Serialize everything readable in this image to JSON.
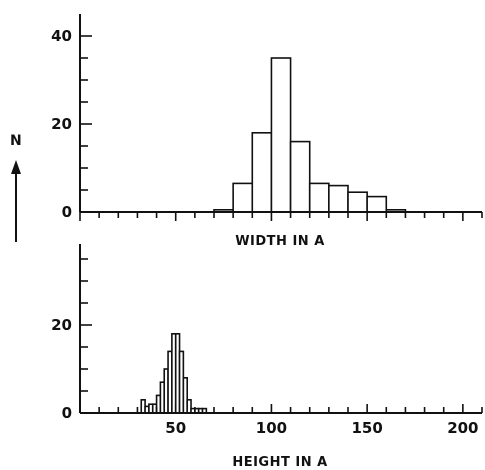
{
  "chart_data": [
    {
      "type": "bar",
      "xlabel": "WIDTH IN A",
      "ylabel": "N",
      "xlim": [
        0,
        210
      ],
      "ylim": [
        0,
        45
      ],
      "y_ticks": [
        0,
        20,
        40
      ],
      "y_minor_step": 5,
      "x_minor_step": 10,
      "bin_width": 10,
      "bin_starts": [
        70,
        80,
        90,
        100,
        110,
        120,
        130,
        140,
        150,
        160,
        170
      ],
      "values": [
        0.5,
        6.5,
        18,
        35,
        16,
        6.5,
        6,
        4.5,
        3.5,
        0.5,
        0
      ]
    },
    {
      "type": "bar",
      "xlabel": "HEIGHT IN A",
      "ylabel": "N",
      "xlim": [
        0,
        210
      ],
      "ylim": [
        0,
        45
      ],
      "y_ticks": [
        0,
        20
      ],
      "y_minor_step": 5,
      "x_minor_step": 10,
      "x_ticks": [
        50,
        100,
        150,
        200
      ],
      "bin_width": 2,
      "bin_starts": [
        32,
        34,
        36,
        38,
        40,
        42,
        44,
        46,
        48,
        50,
        52,
        54,
        56,
        58,
        60,
        62,
        64
      ],
      "values": [
        3,
        1.5,
        2,
        2,
        4,
        7,
        10,
        14,
        18,
        18,
        14,
        8,
        3,
        1,
        1,
        1,
        1
      ]
    }
  ]
}
